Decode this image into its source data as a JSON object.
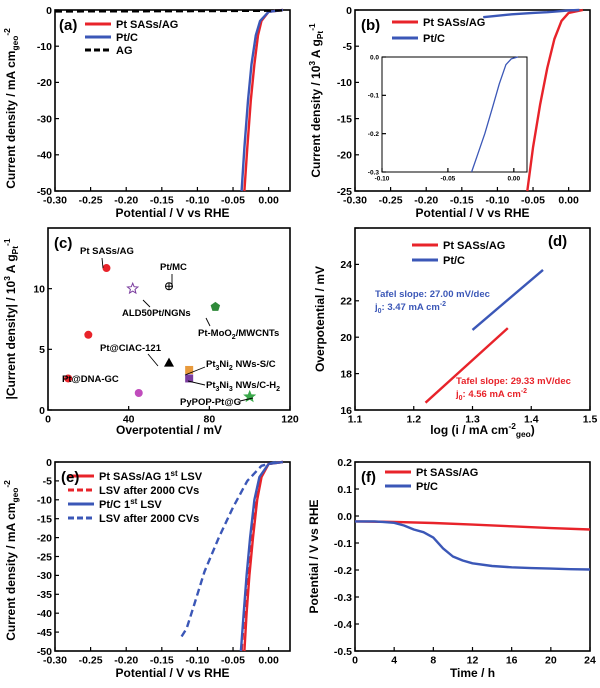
{
  "colors": {
    "red": "#e8232a",
    "blue": "#3b57b7",
    "black": "#000000",
    "purple": "#7a3c9e",
    "green": "#3aa84a",
    "orange": "#e89a3c",
    "magenta": "#c04cbc",
    "darkgreen": "#2f8a3a"
  },
  "chart_data": [
    {
      "id": "a",
      "label": "(a)",
      "type": "line",
      "xlabel": "Potential / V vs RHE",
      "ylabel": "Current density / mA cm",
      "ylabel_sub": "geo",
      "ylabel_sup": "-2",
      "xlim": [
        -0.3,
        0.03
      ],
      "ylim": [
        -50,
        0
      ],
      "xticks": [
        -0.3,
        -0.25,
        -0.2,
        -0.15,
        -0.1,
        -0.05,
        0.0
      ],
      "xticklabels": [
        "-0.30",
        "-0.25",
        "-0.20",
        "-0.15",
        "-0.10",
        "-0.05",
        "0.00"
      ],
      "yticks": [
        0,
        -10,
        -20,
        -30,
        -40,
        -50
      ],
      "yticklabels": [
        "0",
        "-10",
        "-20",
        "-30",
        "-40",
        "-50"
      ],
      "legend": [
        "Pt SASs/AG",
        "Pt/C",
        "AG"
      ],
      "series": [
        {
          "name": "Pt SASs/AG",
          "color": "red",
          "dash": false,
          "x": [
            0.02,
            0.0,
            -0.01,
            -0.015,
            -0.02,
            -0.025,
            -0.03,
            -0.034
          ],
          "y": [
            0,
            -0.5,
            -3,
            -7,
            -15,
            -25,
            -38,
            -50
          ]
        },
        {
          "name": "Pt/C",
          "color": "blue",
          "dash": false,
          "x": [
            0.02,
            0.0,
            -0.012,
            -0.018,
            -0.024,
            -0.029,
            -0.034,
            -0.038
          ],
          "y": [
            0,
            -0.5,
            -3,
            -7,
            -15,
            -25,
            -38,
            -50
          ]
        },
        {
          "name": "AG",
          "color": "black",
          "dash": true,
          "x": [
            -0.3,
            -0.2,
            -0.1,
            0.0,
            0.02
          ],
          "y": [
            -0.4,
            -0.35,
            -0.3,
            -0.2,
            -0.1
          ]
        }
      ]
    },
    {
      "id": "b",
      "label": "(b)",
      "type": "line",
      "xlabel": "Potential / V vs RHE",
      "ylabel": "Current density / 10",
      "ylabel_sup": "3",
      "ylabel_tail": " A g",
      "ylabel_sub": "Pt",
      "ylabel_sup2": "-1",
      "xlim": [
        -0.3,
        0.03
      ],
      "ylim": [
        -25,
        0
      ],
      "xticks": [
        -0.3,
        -0.25,
        -0.2,
        -0.15,
        -0.1,
        -0.05,
        0.0
      ],
      "xticklabels": [
        "-0.30",
        "-0.25",
        "-0.20",
        "-0.15",
        "-0.10",
        "-0.05",
        "0.00"
      ],
      "yticks": [
        0,
        -5,
        -10,
        -15,
        -20,
        -25
      ],
      "yticklabels": [
        "0",
        "-5",
        "-10",
        "-15",
        "-20",
        "-25"
      ],
      "legend": [
        "Pt SASs/AG",
        "Pt/C"
      ],
      "series": [
        {
          "name": "Pt SASs/AG",
          "color": "red",
          "dash": false,
          "x": [
            0.02,
            0.0,
            -0.01,
            -0.02,
            -0.03,
            -0.04,
            -0.05,
            -0.058
          ],
          "y": [
            0,
            -0.4,
            -1.5,
            -4,
            -8,
            -13,
            -19,
            -25
          ]
        },
        {
          "name": "Pt/C",
          "color": "blue",
          "dash": false,
          "x": [
            -0.12,
            -0.08,
            -0.05,
            -0.03,
            -0.01,
            0.0,
            0.015
          ],
          "y": [
            -1.0,
            -0.6,
            -0.4,
            -0.3,
            -0.15,
            -0.05,
            0
          ]
        }
      ],
      "inset": {
        "xlim": [
          -0.1,
          0.01
        ],
        "ylim": [
          -0.3,
          0.0
        ],
        "xticks": [
          -0.1,
          -0.05,
          0.0
        ],
        "xticklabels": [
          "-0.10",
          "-0.05",
          "0.00"
        ],
        "yticks": [
          0.0,
          -0.1,
          -0.2,
          -0.3
        ],
        "yticklabels": [
          "0.0",
          "-0.1",
          "-0.2",
          "-0.3"
        ],
        "series": {
          "name": "Pt/C",
          "color": "blue",
          "x": [
            -0.032,
            -0.028,
            -0.022,
            -0.016,
            -0.011,
            -0.006,
            -0.002,
            0.003
          ],
          "y": [
            -0.3,
            -0.26,
            -0.2,
            -0.13,
            -0.07,
            -0.02,
            -0.005,
            0.0
          ]
        }
      }
    },
    {
      "id": "c",
      "label": "(c)",
      "type": "scatter",
      "xlabel": "Overpotential / mV",
      "ylabel": "|Current density| / 10",
      "ylabel_sup": "3",
      "ylabel_tail": " A g",
      "ylabel_sub": "Pt",
      "ylabel_sup2": "-1",
      "xlim": [
        0,
        120
      ],
      "ylim": [
        0,
        15
      ],
      "xticks": [
        0,
        40,
        80,
        120
      ],
      "xticklabels": [
        "0",
        "40",
        "80",
        "120"
      ],
      "yticks": [
        0,
        5,
        10
      ],
      "yticklabels": [
        "0",
        "5",
        "10"
      ],
      "points": [
        {
          "label": "Pt SASs/AG",
          "x": 29,
          "y": 11.7,
          "marker": "circle",
          "color": "red"
        },
        {
          "label": "",
          "x": 20,
          "y": 6.2,
          "marker": "circle",
          "color": "red"
        },
        {
          "label": "",
          "x": 10,
          "y": 2.6,
          "marker": "circle",
          "color": "red"
        },
        {
          "label": "Pt/MC",
          "x": 60,
          "y": 10.2,
          "marker": "crosscircle",
          "color": "black"
        },
        {
          "label": "ALD50Pt/NGNs",
          "x": 42,
          "y": 10.0,
          "marker": "star",
          "color": "purple"
        },
        {
          "label": "Pt-MoO2/MWCNTs",
          "x": 83,
          "y": 8.5,
          "marker": "pentagon",
          "color": "darkgreen"
        },
        {
          "label": "Pt@CIAC-121",
          "x": 60,
          "y": 3.9,
          "marker": "triangle",
          "color": "black"
        },
        {
          "label": "Pt3Ni2 NWs-S/C",
          "x": 70,
          "y": 3.3,
          "marker": "square",
          "color": "orange"
        },
        {
          "label": "Pt3Ni3 NWs/C-H2",
          "x": 70,
          "y": 2.6,
          "marker": "square",
          "color": "purple"
        },
        {
          "label": "Pt@DNA-GC",
          "x": 45,
          "y": 1.4,
          "marker": "circle",
          "color": "magenta"
        },
        {
          "label": "PyPOP-Pt@G",
          "x": 100,
          "y": 1.1,
          "marker": "star",
          "color": "green"
        }
      ]
    },
    {
      "id": "d",
      "label": "(d)",
      "type": "line",
      "xlabel": "log (i / mA cm",
      "xlabel_sup": "-2",
      "xlabel_sub": "geo",
      "xlabel_tail": ")",
      "ylabel": "Overpotential / mV",
      "xlim": [
        1.1,
        1.5
      ],
      "ylim": [
        16,
        26
      ],
      "xticks": [
        1.1,
        1.2,
        1.3,
        1.4,
        1.5
      ],
      "xticklabels": [
        "1.1",
        "1.2",
        "1.3",
        "1.4",
        "1.5"
      ],
      "yticks": [
        16,
        18,
        20,
        22,
        24,
        26
      ],
      "yticklabels": [
        "16",
        "18",
        "20",
        "22",
        "24",
        ""
      ],
      "legend": [
        "Pt SASs/AG",
        "Pt/C"
      ],
      "series": [
        {
          "name": "Pt SASs/AG",
          "color": "red",
          "dash": false,
          "x": [
            1.22,
            1.36
          ],
          "y": [
            16.4,
            20.5
          ]
        },
        {
          "name": "Pt/C",
          "color": "blue",
          "dash": false,
          "x": [
            1.3,
            1.42
          ],
          "y": [
            20.4,
            23.7
          ]
        }
      ],
      "annotations": [
        {
          "line1": "Tafel slope: 27.00 mV/dec",
          "line2": "j",
          "sub": "0",
          "rest": ": 3.47 mA cm",
          "sup": "-2",
          "color": "blue"
        },
        {
          "line1": "Tafel slope: 29.33 mV/dec",
          "line2": "j",
          "sub": "0",
          "rest": ": 4.56 mA cm",
          "sup": "-2",
          "color": "red"
        }
      ]
    },
    {
      "id": "e",
      "label": "(e)",
      "type": "line",
      "xlabel": "Potential / V vs RHE",
      "ylabel": "Current density / mA cm",
      "ylabel_sub": "geo",
      "ylabel_sup": "-2",
      "xlim": [
        -0.3,
        0.03
      ],
      "ylim": [
        -50,
        0
      ],
      "xticks": [
        -0.3,
        -0.25,
        -0.2,
        -0.15,
        -0.1,
        -0.05,
        0.0
      ],
      "xticklabels": [
        "-0.30",
        "-0.25",
        "-0.20",
        "-0.15",
        "-0.10",
        "-0.05",
        "0.00"
      ],
      "yticks": [
        0,
        -5,
        -10,
        -15,
        -20,
        -25,
        -30,
        -35,
        -40,
        -45,
        -50
      ],
      "yticklabels": [
        "0",
        "-5",
        "-10",
        "-15",
        "-20",
        "-25",
        "-30",
        "-35",
        "-40",
        "-45",
        "-50"
      ],
      "legend": [
        "Pt SASs/AG 1st LSV",
        "LSV after 2000 CVs",
        "Pt/C 1st LSV",
        "LSV after 2000 CVs"
      ],
      "legend_sup": [
        "st",
        "",
        "st",
        ""
      ],
      "series": [
        {
          "name": "Pt SASs/AG 1st LSV",
          "color": "red",
          "dash": false,
          "x": [
            0.02,
            0.0,
            -0.01,
            -0.016,
            -0.022,
            -0.027,
            -0.031,
            -0.034
          ],
          "y": [
            0,
            -0.5,
            -4,
            -10,
            -20,
            -30,
            -40,
            -50
          ]
        },
        {
          "name": "Pt SASs/AG after 2000 CVs",
          "color": "red",
          "dash": true,
          "x": [
            0.02,
            0.0,
            -0.012,
            -0.019,
            -0.025,
            -0.03,
            -0.034,
            -0.038
          ],
          "y": [
            0,
            -0.5,
            -4,
            -10,
            -20,
            -30,
            -40,
            -50
          ]
        },
        {
          "name": "Pt/C 1st LSV",
          "color": "blue",
          "dash": false,
          "x": [
            0.02,
            0.0,
            -0.013,
            -0.02,
            -0.026,
            -0.031,
            -0.035,
            -0.039
          ],
          "y": [
            0,
            -0.5,
            -4,
            -10,
            -20,
            -30,
            -40,
            -50
          ]
        },
        {
          "name": "Pt/C after 2000 CVs",
          "color": "blue",
          "dash": true,
          "x": [
            0.01,
            -0.01,
            -0.03,
            -0.05,
            -0.07,
            -0.09,
            -0.105,
            -0.115,
            -0.125
          ],
          "y": [
            0,
            -1,
            -5,
            -12,
            -20,
            -29,
            -38,
            -44,
            -47
          ]
        }
      ]
    },
    {
      "id": "f",
      "label": "(f)",
      "type": "line",
      "xlabel": "Time / h",
      "ylabel": "Potential / V vs RHE",
      "xlim": [
        0,
        24
      ],
      "ylim": [
        -0.5,
        0.2
      ],
      "xticks": [
        0,
        4,
        8,
        12,
        16,
        20,
        24
      ],
      "xticklabels": [
        "0",
        "4",
        "8",
        "12",
        "16",
        "20",
        "24"
      ],
      "yticks": [
        0.2,
        0.1,
        0.0,
        -0.1,
        -0.2,
        -0.3,
        -0.4,
        -0.5
      ],
      "yticklabels": [
        "0.2",
        "0.1",
        "0.0",
        "-0.1",
        "-0.2",
        "-0.3",
        "-0.4",
        "-0.5"
      ],
      "legend": [
        "Pt SASs/AG",
        "Pt/C"
      ],
      "series": [
        {
          "name": "Pt SASs/AG",
          "color": "red",
          "dash": false,
          "x": [
            0,
            4,
            8,
            12,
            16,
            20,
            24
          ],
          "y": [
            -0.02,
            -0.022,
            -0.026,
            -0.032,
            -0.038,
            -0.045,
            -0.05
          ]
        },
        {
          "name": "Pt/C",
          "color": "blue",
          "dash": false,
          "x": [
            0,
            2,
            4,
            5,
            6,
            7,
            8,
            9,
            10,
            11,
            12,
            14,
            16,
            18,
            20,
            22,
            24
          ],
          "y": [
            -0.02,
            -0.02,
            -0.025,
            -0.035,
            -0.05,
            -0.06,
            -0.08,
            -0.12,
            -0.15,
            -0.165,
            -0.175,
            -0.185,
            -0.19,
            -0.193,
            -0.195,
            -0.197,
            -0.198
          ]
        }
      ]
    }
  ]
}
